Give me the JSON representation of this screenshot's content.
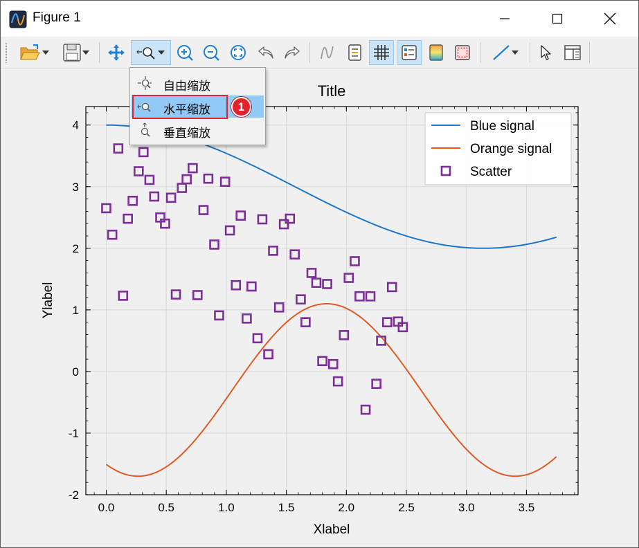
{
  "window": {
    "title": "Figure 1"
  },
  "toolbar": {
    "buttons": [
      {
        "name": "open-folder",
        "icon": "folder-open-icon",
        "active": false
      },
      {
        "name": "save",
        "icon": "floppy-disk-icon",
        "active": false
      },
      {
        "name": "pan",
        "icon": "move-arrows-icon",
        "active": false
      },
      {
        "name": "zoom",
        "icon": "zoom-magnifier-icon",
        "active": true
      },
      {
        "name": "zoom-in",
        "icon": "zoom-in-icon",
        "active": false
      },
      {
        "name": "zoom-out",
        "icon": "zoom-out-icon",
        "active": false
      },
      {
        "name": "zoom-fit",
        "icon": "zoom-fit-icon",
        "active": false
      },
      {
        "name": "undo",
        "icon": "undo-icon",
        "active": false
      },
      {
        "name": "redo",
        "icon": "redo-icon",
        "active": false
      },
      {
        "name": "signal",
        "icon": "signal-wave-icon",
        "active": false
      },
      {
        "name": "cursor-data",
        "icon": "data-cursor-icon",
        "active": false
      },
      {
        "name": "grid",
        "icon": "grid-icon",
        "active": true
      },
      {
        "name": "legend",
        "icon": "legend-icon",
        "active": true
      },
      {
        "name": "colormap",
        "icon": "colormap-icon",
        "active": false
      },
      {
        "name": "frame",
        "icon": "frame-icon",
        "active": false
      },
      {
        "name": "line-style",
        "icon": "line-style-icon",
        "active": false
      },
      {
        "name": "select",
        "icon": "pointer-icon",
        "active": false
      },
      {
        "name": "layout-panel",
        "icon": "layout-panel-icon",
        "active": false
      }
    ]
  },
  "zoom_menu": {
    "items": [
      {
        "label": "自由缩放",
        "icon": "free-zoom-icon",
        "selected": false
      },
      {
        "label": "水平缩放",
        "icon": "horizontal-zoom-icon",
        "selected": true
      },
      {
        "label": "垂直缩放",
        "icon": "vertical-zoom-icon",
        "selected": false
      }
    ]
  },
  "annotation": {
    "badge": "1"
  },
  "chart_data": {
    "type": "line",
    "title": "Title",
    "xlabel": "Xlabel",
    "ylabel": "Ylabel",
    "xlim": [
      -0.17,
      3.93
    ],
    "ylim": [
      -2.0,
      4.3
    ],
    "xticks": [
      "0.0",
      "0.5",
      "1.0",
      "1.5",
      "2.0",
      "2.5",
      "3.0",
      "3.5"
    ],
    "xtick_values": [
      0.0,
      0.5,
      1.0,
      1.5,
      2.0,
      2.5,
      3.0,
      3.5
    ],
    "yticks": [
      "-2",
      "-1",
      "0",
      "1",
      "2",
      "3",
      "4"
    ],
    "ytick_values": [
      -2,
      -1,
      0,
      1,
      2,
      3,
      4
    ],
    "grid": true,
    "legend_position": "top-right",
    "series": [
      {
        "name": "Blue signal",
        "kind": "line",
        "color": "#1f77c8",
        "formula": "3 + cos(x)",
        "x_range": [
          0.0,
          3.75
        ]
      },
      {
        "name": "Orange signal",
        "kind": "line",
        "color": "#e05a24",
        "formula": "-0.3 + 1.4*sin(2*x - 2.1)",
        "x_range": [
          0.0,
          3.75
        ]
      },
      {
        "name": "Scatter",
        "kind": "scatter",
        "color": "#7b2f96",
        "points": [
          [
            0.0,
            2.65
          ],
          [
            0.05,
            2.22
          ],
          [
            0.1,
            3.62
          ],
          [
            0.14,
            1.23
          ],
          [
            0.18,
            2.48
          ],
          [
            0.22,
            2.77
          ],
          [
            0.27,
            3.25
          ],
          [
            0.31,
            3.56
          ],
          [
            0.36,
            3.11
          ],
          [
            0.4,
            2.84
          ],
          [
            0.45,
            2.5
          ],
          [
            0.49,
            2.4
          ],
          [
            0.54,
            2.82
          ],
          [
            0.58,
            1.25
          ],
          [
            0.63,
            2.98
          ],
          [
            0.67,
            3.12
          ],
          [
            0.72,
            3.3
          ],
          [
            0.76,
            1.24
          ],
          [
            0.81,
            2.62
          ],
          [
            0.85,
            3.13
          ],
          [
            0.9,
            2.06
          ],
          [
            0.94,
            0.91
          ],
          [
            0.99,
            3.08
          ],
          [
            1.03,
            2.29
          ],
          [
            1.08,
            1.4
          ],
          [
            1.12,
            2.53
          ],
          [
            1.17,
            0.86
          ],
          [
            1.21,
            1.38
          ],
          [
            1.26,
            0.54
          ],
          [
            1.3,
            2.47
          ],
          [
            1.35,
            0.28
          ],
          [
            1.39,
            1.96
          ],
          [
            1.44,
            1.04
          ],
          [
            1.48,
            2.39
          ],
          [
            1.53,
            2.48
          ],
          [
            1.57,
            1.9
          ],
          [
            1.62,
            1.17
          ],
          [
            1.66,
            0.8
          ],
          [
            1.71,
            1.6
          ],
          [
            1.75,
            1.44
          ],
          [
            1.8,
            0.17
          ],
          [
            1.84,
            1.42
          ],
          [
            1.89,
            0.12
          ],
          [
            1.93,
            -0.16
          ],
          [
            1.98,
            0.59
          ],
          [
            2.02,
            1.52
          ],
          [
            2.07,
            1.79
          ],
          [
            2.11,
            1.22
          ],
          [
            2.16,
            -0.62
          ],
          [
            2.2,
            1.22
          ],
          [
            2.25,
            -0.2
          ],
          [
            2.29,
            0.5
          ],
          [
            2.34,
            0.8
          ],
          [
            2.38,
            1.37
          ],
          [
            2.43,
            0.81
          ],
          [
            2.47,
            0.72
          ]
        ]
      }
    ]
  }
}
